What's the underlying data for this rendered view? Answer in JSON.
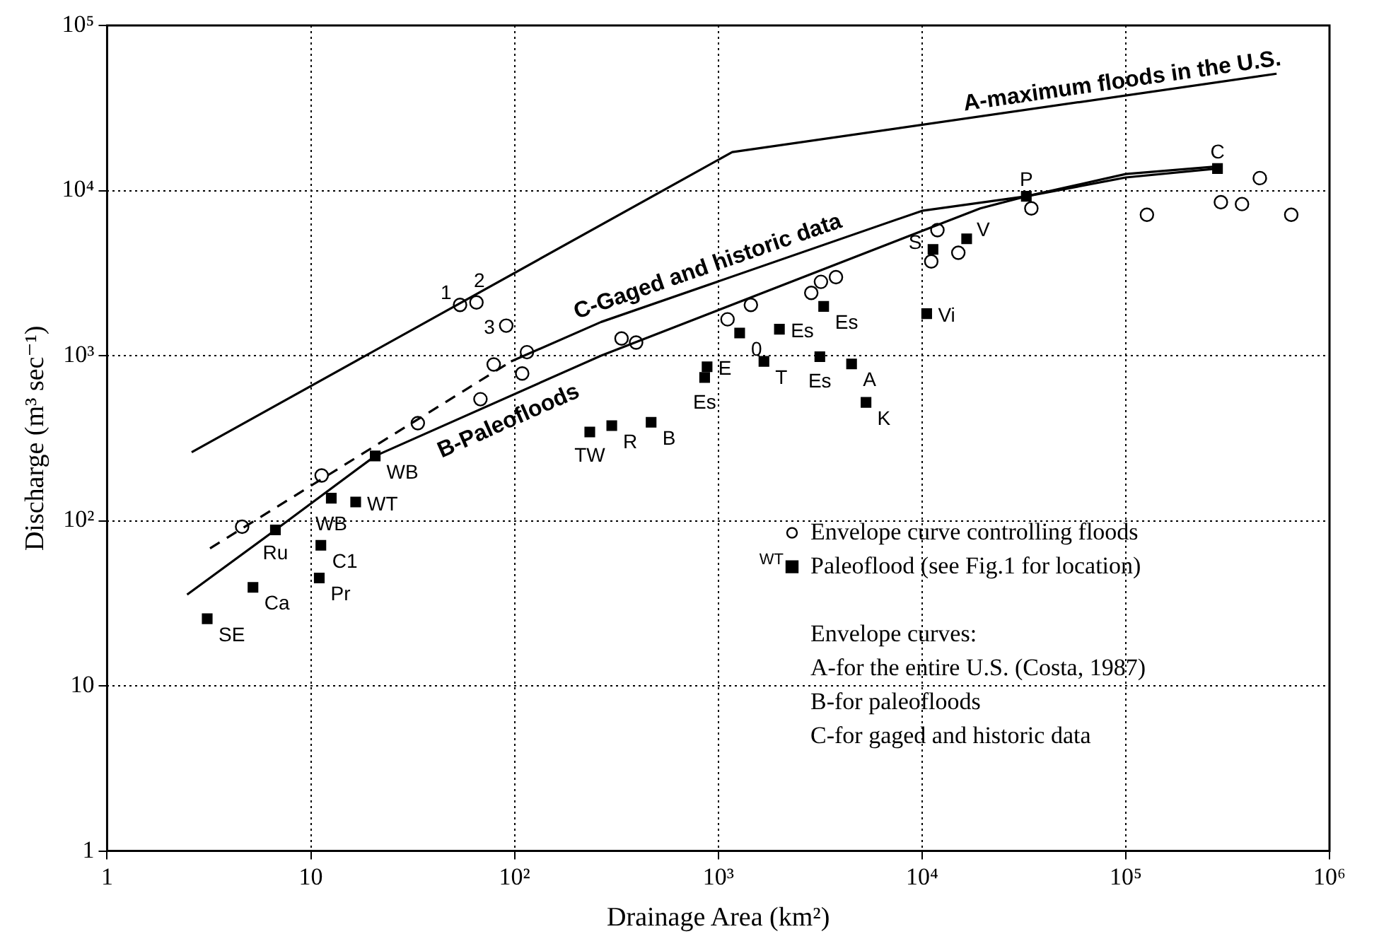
{
  "chart_data": {
    "type": "scatter",
    "xlabel": "Drainage Area (km²)",
    "ylabel": "Discharge (m³ sec⁻¹)",
    "xlim": [
      1,
      1000000
    ],
    "ylim": [
      1,
      100000
    ],
    "xticks": [
      1,
      10,
      {
        "value": 100,
        "label": "10²"
      },
      {
        "value": 1000,
        "label": "10³"
      },
      {
        "value": 10000,
        "label": "10⁴"
      },
      {
        "value": 100000,
        "label": "10⁵"
      },
      {
        "value": 1000000,
        "label": "10⁶"
      }
    ],
    "yticks": [
      1,
      10,
      {
        "value": 100,
        "label": "10²"
      },
      {
        "value": 1000,
        "label": "10³"
      },
      {
        "value": 10000,
        "label": "10⁴"
      },
      {
        "value": 100000,
        "label": "10⁵"
      }
    ],
    "log": "xy",
    "grid": true,
    "legend": "bottom right",
    "annotations": [
      "WT",
      "Envelope curves:",
      "A-for the entire U.S. (Costa, 1987)",
      "B-for paleofloods",
      "C-for gaged and historic data",
      {
        "text": "1",
        "x": 54,
        "y": 2030
      },
      {
        "text": "2",
        "x": 65,
        "y": 2100
      },
      {
        "text": "3",
        "x": 91,
        "y": 1520
      },
      {
        "text": "SE",
        "x": 3.1,
        "y": 25.5
      },
      {
        "text": "Ca",
        "x": 5.2,
        "y": 39.5
      },
      {
        "text": "Ru",
        "x": 6.7,
        "y": 88
      },
      {
        "text": "Pr",
        "x": 11,
        "y": 45
      },
      {
        "text": "C1",
        "x": 11.2,
        "y": 71
      },
      {
        "text": "WB",
        "x": 12.6,
        "y": 137
      },
      {
        "text": "WT",
        "x": 16.6,
        "y": 130
      },
      {
        "text": "WB",
        "x": 20.7,
        "y": 247
      },
      {
        "text": "TW",
        "x": 234,
        "y": 345
      },
      {
        "text": "R",
        "x": 300,
        "y": 377
      },
      {
        "text": "B",
        "x": 468,
        "y": 395
      },
      {
        "text": "Es",
        "x": 857,
        "y": 738
      },
      {
        "text": "E",
        "x": 881,
        "y": 857
      },
      {
        "text": "0",
        "x": 1273,
        "y": 1372
      },
      {
        "text": "T",
        "x": 1675,
        "y": 923
      },
      {
        "text": "Es",
        "x": 1995,
        "y": 1446
      },
      {
        "text": "Es",
        "x": 3150,
        "y": 986
      },
      {
        "text": "Es",
        "x": 3290,
        "y": 1987
      },
      {
        "text": "A",
        "x": 4510,
        "y": 891
      },
      {
        "text": "K",
        "x": 5310,
        "y": 521
      },
      {
        "text": "Vi",
        "x": 10540,
        "y": 1796
      },
      {
        "text": "S",
        "x": 11320,
        "y": 4400
      },
      {
        "text": "V",
        "x": 16560,
        "y": 5100
      },
      {
        "text": "P",
        "x": 32500,
        "y": 9230
      },
      {
        "text": "C",
        "x": 282000,
        "y": 13600
      }
    ],
    "series": [
      {
        "type": "line",
        "name": "A-maximum floods in the U.S.",
        "color": "#000000",
        "line_style": "solid",
        "marker": "none",
        "x": [
          2.6,
          1170,
          550000
        ],
        "values": [
          260,
          17100,
          51000
        ]
      },
      {
        "type": "line",
        "name": "B-Paleofloods",
        "color": "#000000",
        "line_style": "solid",
        "marker": "none",
        "x": [
          2.47,
          6.7,
          20.7,
          266,
          19300,
          32500,
          100000,
          282000
        ],
        "values": [
          35.7,
          88,
          247,
          1000,
          7800,
          9230,
          12000,
          13600
        ]
      },
      {
        "type": "line",
        "color": "#000000",
        "line_style": "dashed",
        "marker": "none",
        "x": [
          3.2,
          96
        ],
        "values": [
          68,
          922
        ]
      },
      {
        "type": "line",
        "name": "C-Gaged and historic data",
        "color": "#000000",
        "line_style": "solid",
        "marker": "none",
        "x": [
          96,
          266,
          10000,
          32500,
          100000,
          282000
        ],
        "values": [
          922,
          1600,
          7540,
          9230,
          12600,
          14000
        ]
      },
      {
        "type": "scatter",
        "name": "Envelope curve controlling floods",
        "color": "#000000",
        "marker": "circle",
        "x": [
          4.6,
          11.3,
          33.5,
          68,
          79,
          109,
          115,
          54,
          65,
          91,
          335,
          395,
          1110,
          1445,
          2860,
          3190,
          3780,
          11100,
          11900,
          15070,
          34400,
          127000,
          293000,
          372000,
          455000,
          649000
        ],
        "values": [
          92,
          188,
          390,
          545,
          885,
          780,
          1050,
          2030,
          2100,
          1520,
          1270,
          1200,
          1660,
          2030,
          2400,
          2800,
          2990,
          3720,
          5760,
          4200,
          7800,
          7140,
          8500,
          8280,
          11900,
          7140
        ]
      },
      {
        "type": "scatter",
        "name": "Paleoflood (see Fig.1 for location)",
        "color": "#000000",
        "marker": "square",
        "x": [
          3.1,
          5.2,
          6.7,
          11,
          11.2,
          12.6,
          16.6,
          20.7,
          234,
          300,
          468,
          857,
          881,
          1273,
          1675,
          1995,
          3150,
          3290,
          4510,
          5310,
          10540,
          11320,
          16560,
          32500,
          282000
        ],
        "values": [
          25.5,
          39.5,
          88,
          45,
          71,
          137,
          130,
          247,
          345,
          377,
          395,
          738,
          857,
          1372,
          923,
          1446,
          986,
          1987,
          891,
          521,
          1796,
          4400,
          5100,
          9230,
          13600
        ]
      }
    ]
  }
}
